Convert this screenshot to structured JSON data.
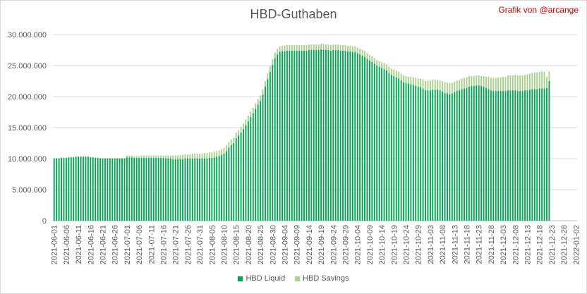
{
  "chart_data": {
    "type": "bar",
    "stacked": true,
    "title": "HBD-Guthaben",
    "credit": "Grafik von @arcange",
    "xlabel": "",
    "ylabel": "",
    "ylim": [
      0,
      30000000
    ],
    "yticks": [
      0,
      5000000,
      10000000,
      15000000,
      20000000,
      25000000,
      30000000
    ],
    "ytick_labels": [
      "0",
      "5.000.000",
      "10.000.000",
      "15.000.000",
      "20.000.000",
      "25.000.000",
      "30.000.000"
    ],
    "grid": "horizontal",
    "legend_position": "bottom",
    "x_start": "2021-06-01",
    "x_end": "2022-01-02",
    "x_tick_labels": [
      "2021-06-01",
      "2021-06-06",
      "2021-06-11",
      "2021-06-16",
      "2021-06-21",
      "2021-06-26",
      "2021-07-01",
      "2021-07-06",
      "2021-07-11",
      "2021-07-16",
      "2021-07-21",
      "2021-07-26",
      "2021-07-31",
      "2021-08-05",
      "2021-08-10",
      "2021-08-15",
      "2021-08-20",
      "2021-08-25",
      "2021-08-30",
      "2021-09-04",
      "2021-09-09",
      "2021-09-14",
      "2021-09-19",
      "2021-09-24",
      "2021-09-29",
      "2021-10-04",
      "2021-10-09",
      "2021-10-14",
      "2021-10-19",
      "2021-10-24",
      "2021-10-29",
      "2021-11-03",
      "2021-11-08",
      "2021-11-13",
      "2021-11-18",
      "2021-11-23",
      "2021-11-28",
      "2021-12-03",
      "2021-12-08",
      "2021-12-13",
      "2021-12-18",
      "2021-12-23",
      "2021-12-28",
      "2022-01-02"
    ],
    "x_tick_dates": [
      "2021-06-01",
      "2021-06-06",
      "2021-06-11",
      "2021-06-16",
      "2021-06-21",
      "2021-06-26",
      "2021-07-01",
      "2021-07-06",
      "2021-07-11",
      "2021-07-16",
      "2021-07-21",
      "2021-07-26",
      "2021-07-31",
      "2021-08-05",
      "2021-08-10",
      "2021-08-15",
      "2021-08-20",
      "2021-08-25",
      "2021-08-30",
      "2021-09-04",
      "2021-09-09",
      "2021-09-14",
      "2021-09-19",
      "2021-09-24",
      "2021-09-29",
      "2021-10-04",
      "2021-10-09",
      "2021-10-14",
      "2021-10-19",
      "2021-10-24",
      "2021-10-29",
      "2021-11-03",
      "2021-11-08",
      "2021-11-13",
      "2021-11-18",
      "2021-11-23",
      "2021-11-28",
      "2021-12-03",
      "2021-12-08",
      "2021-12-13",
      "2021-12-18",
      "2021-12-23",
      "2021-12-28",
      "2022-01-02"
    ],
    "series": [
      {
        "name": "HBD Liquid",
        "color": "#00a550",
        "values": [
          10000000,
          10000000,
          10000000,
          10100000,
          10100000,
          10100000,
          10200000,
          10200000,
          10200000,
          10300000,
          10300000,
          10300000,
          10300000,
          10300000,
          10300000,
          10200000,
          10200000,
          10100000,
          10100000,
          10000000,
          10000000,
          10000000,
          10000000,
          10000000,
          10000000,
          10000000,
          10000000,
          10000000,
          10000000,
          10000000,
          10200000,
          10200000,
          10200000,
          10100000,
          10100000,
          10100000,
          10100000,
          10100000,
          10100000,
          10100000,
          10100000,
          10100000,
          10100000,
          10100000,
          10100000,
          10100000,
          10000000,
          10000000,
          10000000,
          9900000,
          9900000,
          9900000,
          9900000,
          9900000,
          10000000,
          10000000,
          10000000,
          10000000,
          10000000,
          10000000,
          10000000,
          10000000,
          10000000,
          10000000,
          10100000,
          10100000,
          10200000,
          10300000,
          10400000,
          10600000,
          10800000,
          11200000,
          11800000,
          12200000,
          12500000,
          13300000,
          13700000,
          14200000,
          14800000,
          15400000,
          16000000,
          16700000,
          17300000,
          18000000,
          18700000,
          19300000,
          20300000,
          21600000,
          22800000,
          24000000,
          25100000,
          26200000,
          26800000,
          27200000,
          27300000,
          27300000,
          27400000,
          27400000,
          27400000,
          27400000,
          27400000,
          27400000,
          27400000,
          27400000,
          27400000,
          27500000,
          27500000,
          27500000,
          27500000,
          27500000,
          27600000,
          27600000,
          27500000,
          27500000,
          27400000,
          27500000,
          27500000,
          27500000,
          27400000,
          27400000,
          27400000,
          27300000,
          27300000,
          27200000,
          27200000,
          27000000,
          26800000,
          26600000,
          26400000,
          26100000,
          25800000,
          25600000,
          25300000,
          25000000,
          24800000,
          24600000,
          24400000,
          24200000,
          23800000,
          23500000,
          23300000,
          23100000,
          22900000,
          22600000,
          22300000,
          22200000,
          22100000,
          22000000,
          21900000,
          21700000,
          21600000,
          21500000,
          21300000,
          21000000,
          21000000,
          21000000,
          21100000,
          21100000,
          21100000,
          21000000,
          20800000,
          20600000,
          20500000,
          20400000,
          20500000,
          20700000,
          20900000,
          21000000,
          21200000,
          21300000,
          21400000,
          21600000,
          21700000,
          21700000,
          21800000,
          21800000,
          21700000,
          21600000,
          21400000,
          21200000,
          21000000,
          20900000,
          20900000,
          20900000,
          20900000,
          20900000,
          20900000,
          21000000,
          21000000,
          21000000,
          21000000,
          20900000,
          20900000,
          20900000,
          21000000,
          21000000,
          21100000,
          21200000,
          21200000,
          21200000,
          21300000,
          21300000,
          21300000,
          21400000,
          22500000
        ]
      },
      {
        "name": "HBD Savings",
        "color": "#a9d18e",
        "values": [
          100000,
          100000,
          100000,
          100000,
          100000,
          100000,
          100000,
          100000,
          100000,
          100000,
          100000,
          100000,
          100000,
          100000,
          100000,
          100000,
          100000,
          100000,
          100000,
          100000,
          100000,
          100000,
          100000,
          100000,
          100000,
          100000,
          100000,
          100000,
          100000,
          100000,
          300000,
          300000,
          300000,
          300000,
          300000,
          300000,
          400000,
          400000,
          400000,
          400000,
          400000,
          400000,
          400000,
          400000,
          400000,
          400000,
          500000,
          500000,
          500000,
          600000,
          600000,
          600000,
          700000,
          700000,
          700000,
          700000,
          700000,
          800000,
          800000,
          800000,
          800000,
          800000,
          900000,
          900000,
          900000,
          900000,
          900000,
          900000,
          900000,
          900000,
          900000,
          900000,
          900000,
          900000,
          900000,
          900000,
          900000,
          900000,
          900000,
          900000,
          900000,
          900000,
          900000,
          900000,
          900000,
          900000,
          900000,
          900000,
          900000,
          900000,
          900000,
          900000,
          900000,
          900000,
          900000,
          900000,
          900000,
          900000,
          900000,
          900000,
          900000,
          900000,
          900000,
          900000,
          900000,
          900000,
          900000,
          900000,
          900000,
          900000,
          900000,
          900000,
          900000,
          900000,
          900000,
          900000,
          900000,
          900000,
          900000,
          900000,
          900000,
          900000,
          900000,
          900000,
          900000,
          900000,
          900000,
          900000,
          900000,
          900000,
          900000,
          900000,
          900000,
          900000,
          900000,
          900000,
          1000000,
          1000000,
          1000000,
          1000000,
          1100000,
          1100000,
          1100000,
          1100000,
          1100000,
          1100000,
          1100000,
          1200000,
          1200000,
          1300000,
          1300000,
          1400000,
          1500000,
          1500000,
          1600000,
          1600000,
          1600000,
          1600000,
          1600000,
          1600000,
          1700000,
          1700000,
          1800000,
          1800000,
          1700000,
          1700000,
          1700000,
          1700000,
          1700000,
          1700000,
          1700000,
          1700000,
          1600000,
          1600000,
          1600000,
          1600000,
          1600000,
          1700000,
          1800000,
          2000000,
          2000000,
          2100000,
          2100000,
          2200000,
          2200000,
          2300000,
          2300000,
          2400000,
          2400000,
          2400000,
          2500000,
          2500000,
          2500000,
          2500000,
          2500000,
          2600000,
          2600000,
          2600000,
          2700000,
          2700000,
          2700000,
          2800000,
          2700000,
          1800000,
          1600000
        ]
      }
    ]
  }
}
